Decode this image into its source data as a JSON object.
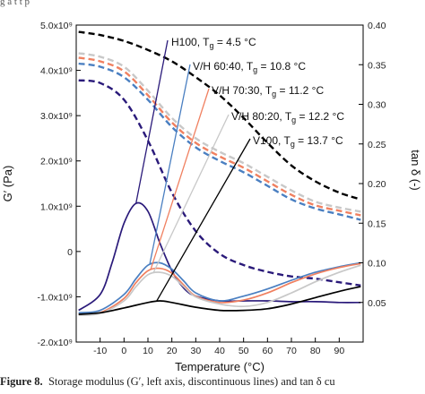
{
  "chart_data": {
    "type": "line",
    "xlabel": "Temperature (°C)",
    "ylabel_left": "G′ (Pa)",
    "ylabel_right": "tan δ (-)",
    "xlim": [
      -20,
      100
    ],
    "ylim_left": [
      -2000000000.0,
      5000000000.0
    ],
    "ylim_right": [
      0.0,
      0.4
    ],
    "x_ticks": [
      -10,
      0,
      10,
      20,
      30,
      40,
      50,
      60,
      70,
      80,
      90
    ],
    "y_ticks_left": [
      "-2.0x10⁹",
      "-1.0x10⁹",
      "0",
      "1.0x10⁹",
      "2.0x10⁹",
      "3.0x10⁹",
      "4.0x10⁹",
      "5.0x10⁹"
    ],
    "y_tick_values_left": [
      -2000000000.0,
      -1000000000.0,
      0,
      1000000000.0,
      2000000000.0,
      3000000000.0,
      4000000000.0,
      5000000000.0
    ],
    "y_ticks_right": [
      "0.05",
      "0.10",
      "0.15",
      "0.20",
      "0.25",
      "0.30",
      "0.35",
      "0.40"
    ],
    "y_tick_values_right": [
      0.05,
      0.1,
      0.15,
      0.2,
      0.25,
      0.3,
      0.35,
      0.4
    ],
    "series": [
      {
        "name": "H100, Tg = 4.5 °C",
        "color": "#2a1a7a",
        "storage_modulus": {
          "x": [
            -19,
            -10,
            0,
            10,
            20,
            30,
            40,
            50,
            60,
            70,
            80,
            90,
            99
          ],
          "y": [
            3780000000.0,
            3720000000.0,
            3350000000.0,
            2450000000.0,
            1300000000.0,
            450000000.0,
            -50000000.0,
            -300000000.0,
            -450000000.0,
            -550000000.0,
            -600000000.0,
            -680000000.0,
            -750000000.0
          ]
        },
        "tan_delta": {
          "x": [
            -19,
            -10,
            -5,
            0,
            5,
            10,
            15,
            20,
            25,
            30,
            40,
            50,
            60,
            70,
            80,
            90,
            99
          ],
          "y": [
            0.04,
            0.06,
            0.1,
            0.15,
            0.175,
            0.165,
            0.125,
            0.09,
            0.068,
            0.058,
            0.052,
            0.052,
            0.052,
            0.051,
            0.051,
            0.05,
            0.05
          ]
        }
      },
      {
        "name": "V/H 60:40, Tg = 10.8 °C",
        "color": "#4a7fc1",
        "storage_modulus": {
          "x": [
            -19,
            -10,
            0,
            10,
            20,
            30,
            40,
            50,
            60,
            70,
            80,
            90,
            99
          ],
          "y": [
            4150000000.0,
            4080000000.0,
            3850000000.0,
            3350000000.0,
            2750000000.0,
            2300000000.0,
            2000000000.0,
            1750000000.0,
            1450000000.0,
            1150000000.0,
            950000000.0,
            820000000.0,
            700000000.0
          ]
        },
        "tan_delta": {
          "x": [
            -19,
            -10,
            0,
            5,
            10,
            15,
            20,
            25,
            30,
            40,
            50,
            60,
            70,
            80,
            90,
            99
          ],
          "y": [
            0.037,
            0.04,
            0.06,
            0.08,
            0.097,
            0.1,
            0.092,
            0.077,
            0.062,
            0.052,
            0.058,
            0.067,
            0.078,
            0.088,
            0.095,
            0.1
          ]
        }
      },
      {
        "name": "V/H 70:30, Tg = 11.2 °C",
        "color": "#f08060",
        "storage_modulus": {
          "x": [
            -19,
            -10,
            0,
            10,
            20,
            30,
            40,
            50,
            60,
            70,
            80,
            90,
            99
          ],
          "y": [
            4280000000.0,
            4200000000.0,
            3980000000.0,
            3450000000.0,
            2850000000.0,
            2400000000.0,
            2100000000.0,
            1850000000.0,
            1550000000.0,
            1250000000.0,
            1020000000.0,
            900000000.0,
            800000000.0
          ]
        },
        "tan_delta": {
          "x": [
            -19,
            -10,
            0,
            5,
            10,
            15,
            20,
            25,
            30,
            40,
            50,
            60,
            70,
            80,
            90,
            99
          ],
          "y": [
            0.035,
            0.037,
            0.055,
            0.075,
            0.09,
            0.093,
            0.087,
            0.072,
            0.058,
            0.05,
            0.053,
            0.062,
            0.075,
            0.086,
            0.094,
            0.099
          ]
        }
      },
      {
        "name": "V/H 80:20, Tg = 12.2 °C",
        "color": "#c8c8c8",
        "storage_modulus": {
          "x": [
            -19,
            -10,
            0,
            10,
            20,
            30,
            40,
            50,
            60,
            70,
            80,
            90,
            99
          ],
          "y": [
            4380000000.0,
            4300000000.0,
            4080000000.0,
            3550000000.0,
            2950000000.0,
            2500000000.0,
            2200000000.0,
            1950000000.0,
            1650000000.0,
            1350000000.0,
            1100000000.0,
            970000000.0,
            880000000.0
          ]
        },
        "tan_delta": {
          "x": [
            -19,
            -10,
            0,
            5,
            10,
            15,
            20,
            25,
            30,
            40,
            50,
            60,
            70,
            80,
            90,
            99
          ],
          "y": [
            0.034,
            0.036,
            0.052,
            0.07,
            0.085,
            0.088,
            0.083,
            0.07,
            0.057,
            0.048,
            0.045,
            0.05,
            0.062,
            0.076,
            0.088,
            0.097
          ]
        }
      },
      {
        "name": "V100, Tg = 13.7 °C",
        "color": "#000000",
        "storage_modulus": {
          "x": [
            -19,
            -10,
            0,
            10,
            20,
            30,
            40,
            50,
            60,
            70,
            80,
            90,
            99
          ],
          "y": [
            4850000000.0,
            4780000000.0,
            4650000000.0,
            4450000000.0,
            4200000000.0,
            3850000000.0,
            3450000000.0,
            2950000000.0,
            2400000000.0,
            1900000000.0,
            1550000000.0,
            1300000000.0,
            1150000000.0
          ]
        },
        "tan_delta": {
          "x": [
            -19,
            -10,
            0,
            10,
            15,
            20,
            30,
            40,
            50,
            60,
            70,
            80,
            90,
            99
          ],
          "y": [
            0.035,
            0.037,
            0.043,
            0.05,
            0.052,
            0.05,
            0.044,
            0.04,
            0.04,
            0.042,
            0.048,
            0.056,
            0.064,
            0.07
          ]
        }
      }
    ],
    "annotations": [
      {
        "label": "H100, T",
        "sub": "g",
        "rest": " = 4.5 °C",
        "series": 0,
        "point_x": 5,
        "point_y_tan": 0.175
      },
      {
        "label": "V/H 60:40, T",
        "sub": "g",
        "rest": " = 10.8 °C",
        "series": 1,
        "point_x": 10.8,
        "point_y_tan": 0.099
      },
      {
        "label": "V/H 70:30, T",
        "sub": "g",
        "rest": " = 11.2 °C",
        "series": 2,
        "point_x": 11.2,
        "point_y_tan": 0.092
      },
      {
        "label": "V/H 80:20, T",
        "sub": "g",
        "rest": " = 12.2 °C",
        "series": 3,
        "point_x": 12.2,
        "point_y_tan": 0.087
      },
      {
        "label": "V100, T",
        "sub": "g",
        "rest": " = 13.7 °C",
        "series": 4,
        "point_x": 13.7,
        "point_y_tan": 0.052
      }
    ],
    "grid": false
  },
  "caption": {
    "label": "Figure 8.",
    "text": "Storage modulus (G′, left axis, discontinuous lines) and tan δ cu"
  },
  "top_fragment": "g        a               t              t             p"
}
